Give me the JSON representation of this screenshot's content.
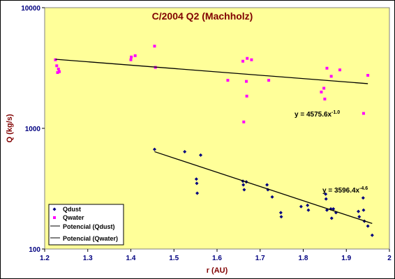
{
  "colors": {
    "plot_bg": "#ffff99",
    "outer_bg": "#ffffff",
    "dust": "#000080",
    "water": "#ff00ff",
    "fit": "#000000",
    "axis_text": "#000080",
    "title_text": "#800000"
  },
  "chart_data": {
    "type": "scatter",
    "title": "C/2004 Q2 (Machholz)",
    "xlabel": "r (AU)",
    "ylabel": "Q (kg/s)",
    "xlim": [
      1.2,
      2.0
    ],
    "ylim": [
      100,
      10000
    ],
    "y_scale": "log",
    "grid": false,
    "legend_position": "bottom-left",
    "x_ticks": [
      "1.2",
      "1.3",
      "1.4",
      "1.5",
      "1.6",
      "1.7",
      "1.8",
      "1.9",
      "2"
    ],
    "y_ticks": [
      "100",
      "1000",
      "10000"
    ],
    "series": [
      {
        "name": "Qdust",
        "marker": "diamond",
        "x": [
          1.455,
          1.525,
          1.552,
          1.553,
          1.554,
          1.562,
          1.66,
          1.661,
          1.663,
          1.668,
          1.716,
          1.718,
          1.728,
          1.748,
          1.749,
          1.795,
          1.81,
          1.812,
          1.852,
          1.853,
          1.855,
          1.864,
          1.866,
          1.87,
          1.876,
          1.928,
          1.93,
          1.939,
          1.94,
          1.942,
          1.95,
          1.96
        ],
        "y": [
          670,
          640,
          380,
          350,
          290,
          600,
          365,
          340,
          310,
          360,
          340,
          310,
          270,
          200,
          185,
          225,
          230,
          210,
          285,
          260,
          210,
          215,
          180,
          215,
          200,
          205,
          185,
          265,
          210,
          170,
          155,
          130
        ]
      },
      {
        "name": "Qwater",
        "marker": "square",
        "x": [
          1.225,
          1.228,
          1.23,
          1.232,
          1.234,
          1.4,
          1.401,
          1.41,
          1.455,
          1.457,
          1.625,
          1.66,
          1.662,
          1.668,
          1.669,
          1.67,
          1.68,
          1.72,
          1.842,
          1.848,
          1.85,
          1.855,
          1.865,
          1.885,
          1.94,
          1.95
        ],
        "y": [
          3700,
          3300,
          2900,
          3100,
          2950,
          3700,
          3900,
          4000,
          4800,
          3200,
          2500,
          3600,
          1130,
          2450,
          1850,
          3800,
          3700,
          2500,
          2000,
          2150,
          1750,
          3150,
          2700,
          3050,
          1330,
          2750
        ]
      },
      {
        "name": "Potencial (Qdust)",
        "type": "line",
        "equation": "y = 3596.4x",
        "exponent": "-4.6",
        "x": [
          1.455,
          1.96
        ]
      },
      {
        "name": "Potencial (Qwater)",
        "type": "line",
        "equation": "y = 4575.6x",
        "exponent": "-1.0",
        "x": [
          1.225,
          1.95
        ]
      }
    ]
  }
}
